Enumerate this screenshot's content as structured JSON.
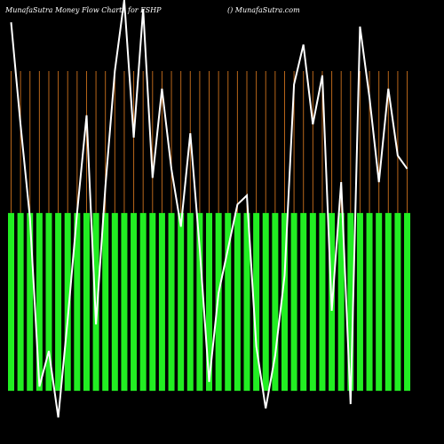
{
  "chart_data": {
    "type": "money-flow",
    "title": "MunafaSutra  Money Flow Charts for FSHP",
    "subtitle": "() MunafaSutra.com",
    "categories": [
      null,
      null,
      null,
      null,
      null,
      null,
      null,
      null,
      null,
      null,
      null,
      null,
      null,
      null,
      null,
      null,
      null,
      null,
      null,
      null,
      null,
      null,
      null,
      null,
      null,
      null,
      null,
      null,
      null,
      null,
      null,
      null,
      null,
      null,
      null,
      null,
      null,
      null,
      null,
      null,
      null,
      null,
      null
    ],
    "series": [
      {
        "color": "#22ee22",
        "values": [
          45.5,
          45.5,
          45.5,
          45.5,
          45.5,
          45.5,
          45.5,
          45.5,
          45.5,
          45.5,
          45.5,
          45.5,
          45.5,
          45.5,
          45.5,
          45.5,
          45.5,
          45.5,
          45.5,
          45.5,
          45.5,
          45.5,
          45.5,
          45.5,
          45.5,
          45.5,
          45.5,
          45.5,
          45.5,
          45.5,
          45.5,
          45.5,
          45.5,
          45.5,
          45.5,
          45.5,
          45.5,
          45.5,
          45.5,
          45.5,
          45.5,
          45.5,
          45.5
        ]
      },
      {
        "color": "#ffffff",
        "values": [
          94.3,
          68.2,
          44.3,
          1.1,
          10.2,
          -6.8,
          18.2,
          45.5,
          70.5,
          17,
          52.3,
          81.8,
          100,
          64.8,
          97.7,
          54.5,
          77.3,
          56.8,
          42,
          65.9,
          36.4,
          2.3,
          25,
          36.4,
          47.7,
          50,
          11.4,
          -4.5,
          9.1,
          29.5,
          78.4,
          88.6,
          68.2,
          80.7,
          20.5,
          53.4,
          -3.4,
          93.2,
          75,
          53.4,
          77.3,
          60.2,
          56.8
        ]
      }
    ],
    "ylim": [
      -13.6,
      100
    ],
    "grid_color": "#b8661a"
  }
}
